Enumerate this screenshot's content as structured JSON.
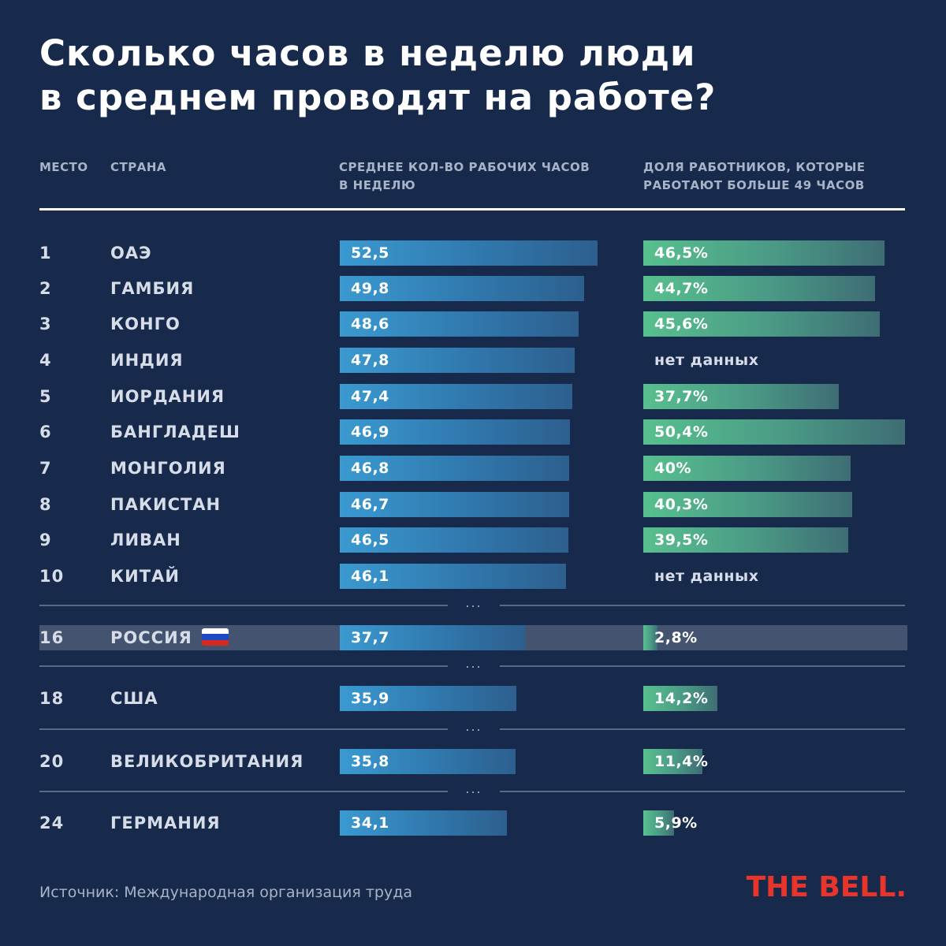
{
  "title": [
    "Сколько часов в неделю люди",
    "в среднем проводят на работе?"
  ],
  "headers": {
    "place": "МЕСТО",
    "country": "СТРАНА",
    "hours": "СРЕДНЕЕ КОЛ-ВО РАБОЧИХ ЧАСОВ В НЕДЕЛЮ",
    "share": "ДОЛЯ РАБОТНИКОВ, КОТОРЫЕ РАБОТАЮТ БОЛЬШЕ 49 ЧАСОВ"
  },
  "separator_text": "...",
  "no_data_text": "нет данных",
  "source": "Источник: Международная организация труда",
  "logo": "THE BELL.",
  "colors": {
    "background": "#182a4b",
    "hours_bar": "#3a9ad1",
    "share_bar": "#58c08e",
    "highlight": "#44536f",
    "logo": "#e8352b"
  },
  "chart_data": {
    "type": "bar",
    "title": "Сколько часов в неделю люди в среднем проводят на работе?",
    "series": [
      {
        "name": "Среднее кол-во рабочих часов в неделю",
        "unit": "hours",
        "max": 52.5
      },
      {
        "name": "Доля работников, которые работают больше 49 часов",
        "unit": "%",
        "max": 50.4
      }
    ],
    "rows": [
      {
        "rank": "1",
        "country": "ОАЭ",
        "hours": 52.5,
        "hours_label": "52,5",
        "share": 46.5,
        "share_label": "46,5%"
      },
      {
        "rank": "2",
        "country": "ГАМБИЯ",
        "hours": 49.8,
        "hours_label": "49,8",
        "share": 44.7,
        "share_label": "44,7%"
      },
      {
        "rank": "3",
        "country": "КОНГО",
        "hours": 48.6,
        "hours_label": "48,6",
        "share": 45.6,
        "share_label": "45,6%"
      },
      {
        "rank": "4",
        "country": "ИНДИЯ",
        "hours": 47.8,
        "hours_label": "47,8",
        "share": null,
        "share_label": null
      },
      {
        "rank": "5",
        "country": "ИОРДАНИЯ",
        "hours": 47.4,
        "hours_label": "47,4",
        "share": 37.7,
        "share_label": "37,7%"
      },
      {
        "rank": "6",
        "country": "БАНГЛАДЕШ",
        "hours": 46.9,
        "hours_label": "46,9",
        "share": 50.4,
        "share_label": "50,4%"
      },
      {
        "rank": "7",
        "country": "МОНГОЛИЯ",
        "hours": 46.8,
        "hours_label": "46,8",
        "share": 40.0,
        "share_label": "40%"
      },
      {
        "rank": "8",
        "country": "ПАКИСТАН",
        "hours": 46.7,
        "hours_label": "46,7",
        "share": 40.3,
        "share_label": "40,3%"
      },
      {
        "rank": "9",
        "country": "ЛИВАН",
        "hours": 46.5,
        "hours_label": "46,5",
        "share": 39.5,
        "share_label": "39,5%"
      },
      {
        "rank": "10",
        "country": "КИТАЙ",
        "hours": 46.1,
        "hours_label": "46,1",
        "share": null,
        "share_label": null
      },
      {
        "rank": "16",
        "country": "РОССИЯ",
        "hours": 37.7,
        "hours_label": "37,7",
        "share": 2.8,
        "share_label": "2,8%",
        "highlight": true,
        "flag": "russia"
      },
      {
        "rank": "18",
        "country": "США",
        "hours": 35.9,
        "hours_label": "35,9",
        "share": 14.2,
        "share_label": "14,2%"
      },
      {
        "rank": "20",
        "country": "ВЕЛИКОБРИТАНИЯ",
        "hours": 35.8,
        "hours_label": "35,8",
        "share": 11.4,
        "share_label": "11,4%"
      },
      {
        "rank": "24",
        "country": "ГЕРМАНИЯ",
        "hours": 34.1,
        "hours_label": "34,1",
        "share": 5.9,
        "share_label": "5,9%"
      }
    ]
  }
}
